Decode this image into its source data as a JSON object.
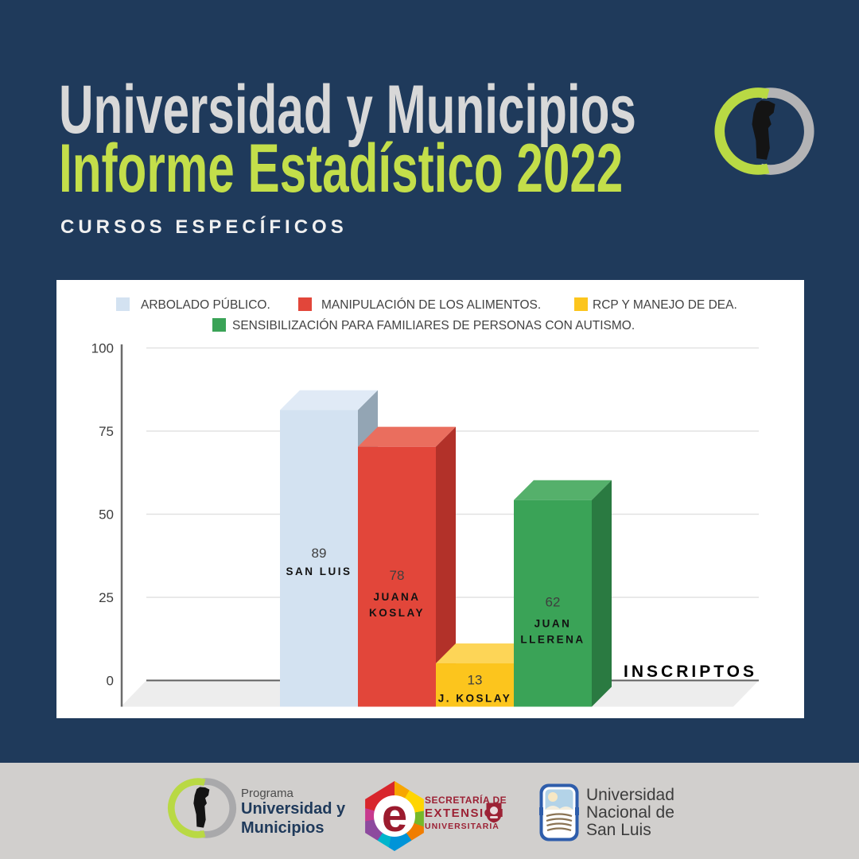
{
  "colors": {
    "background": "#1f3a5b",
    "accent_lime": "#c3de4a",
    "title_gray": "#d8d8d8",
    "footer_bg": "#d1cfcd",
    "card_bg": "#ffffff"
  },
  "header": {
    "title": "Universidad y Municipios",
    "subtitle": "Informe Estadístico 2022",
    "tagline": "CURSOS ESPECÍFICOS"
  },
  "chart_data": {
    "type": "bar",
    "style": "3d-bars",
    "legend": [
      "ARBOLADO PÚBLICO.",
      "MANIPULACIÓN DE LOS ALIMENTOS.",
      "RCP Y MANEJO DE DEA.",
      "SENSIBILIZACIÓN PARA FAMILIARES DE PERSONAS CON AUTISMO."
    ],
    "legend_position": "top",
    "categories": [
      "SAN LUIS",
      "JUANA KOSLAY",
      "J. KOSLAY",
      "JUAN LLERENA"
    ],
    "label_lines": [
      [
        "SAN LUIS"
      ],
      [
        "JUANA",
        "KOSLAY"
      ],
      [
        "J. KOSLAY"
      ],
      [
        "JUAN",
        "LLERENA"
      ]
    ],
    "values": [
      89,
      78,
      13,
      62
    ],
    "axis_label": "INSCRIPTOS",
    "xlabel": "",
    "ylabel": "",
    "yticks": [
      0,
      25,
      50,
      75,
      100
    ],
    "ylim": [
      0,
      100
    ],
    "grid": true,
    "bar_colors": [
      {
        "front": "#d3e2f1",
        "top": "#e0eaf6",
        "side": "#93a5b4"
      },
      {
        "front": "#e2463a",
        "top": "#ea6e5e",
        "side": "#b23129"
      },
      {
        "front": "#fcc51d",
        "top": "#fdd557",
        "side": "#dba513"
      },
      {
        "front": "#3aa357",
        "top": "#55b06b",
        "side": "#2a7a41"
      }
    ]
  },
  "footer": {
    "program": {
      "pre": "Programa",
      "name1": "Universidad y",
      "name2": "Municipios"
    },
    "extension": {
      "letter": "e",
      "line1": "SECRETARÍA DE",
      "line2": "EXTENSIÓN",
      "line3": "UNIVERSITARIA"
    },
    "unsl": {
      "line1": "Universidad",
      "line2": "Nacional de",
      "line3": "San Luis"
    }
  }
}
